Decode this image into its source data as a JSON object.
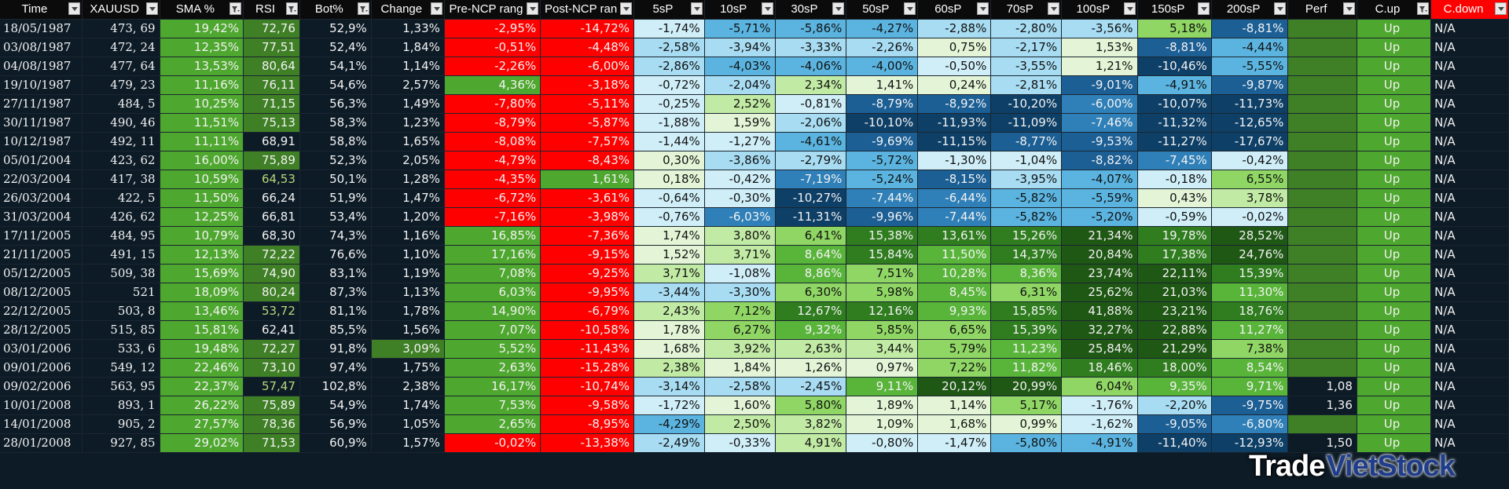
{
  "columns": [
    {
      "label": "Time",
      "filter": "arrow"
    },
    {
      "label": "XAUUSD",
      "filter": "arrow"
    },
    {
      "label": "SMA %",
      "filter": "funnel"
    },
    {
      "label": "RSI",
      "filter": "funnel"
    },
    {
      "label": "Bot%",
      "filter": "funnel"
    },
    {
      "label": "Change",
      "filter": "arrow"
    },
    {
      "label": "Pre-NCP rang",
      "filter": "arrow"
    },
    {
      "label": "Post-NCP ran",
      "filter": "arrow"
    },
    {
      "label": "5sP",
      "filter": "arrow"
    },
    {
      "label": "10sP",
      "filter": "arrow"
    },
    {
      "label": "30sP",
      "filter": "arrow"
    },
    {
      "label": "50sP",
      "filter": "arrow"
    },
    {
      "label": "60sP",
      "filter": "arrow"
    },
    {
      "label": "70sP",
      "filter": "arrow"
    },
    {
      "label": "100sP",
      "filter": "arrow"
    },
    {
      "label": "150sP",
      "filter": "arrow"
    },
    {
      "label": "200sP",
      "filter": "arrow"
    },
    {
      "label": "Perf",
      "filter": "arrow"
    },
    {
      "label": "C.up",
      "filter": "funnel"
    },
    {
      "label": "C.down",
      "filter": "arrow"
    }
  ],
  "header_colors": {
    "cdown_bg": "#ff0000"
  },
  "rows": [
    [
      "18/05/1987",
      "473, 69",
      "19,42%",
      "72,76",
      "52,9%",
      "1,33%",
      "-2,95%",
      "-14,72%",
      "-1,74%",
      "-5,71%",
      "-5,86%",
      "-4,27%",
      "-2,88%",
      "-2,80%",
      "-3,56%",
      "5,18%",
      "-8,81%",
      "",
      "Up",
      "N/A"
    ],
    [
      "03/08/1987",
      "472, 24",
      "12,35%",
      "77,51",
      "52,4%",
      "1,84%",
      "-0,51%",
      "-4,48%",
      "-2,58%",
      "-3,94%",
      "-3,33%",
      "-2,26%",
      "0,75%",
      "-2,17%",
      "1,53%",
      "-8,81%",
      "-4,44%",
      "",
      "Up",
      "N/A"
    ],
    [
      "04/08/1987",
      "477, 64",
      "13,53%",
      "80,64",
      "54,1%",
      "1,14%",
      "-2,26%",
      "-6,00%",
      "-2,86%",
      "-4,03%",
      "-4,06%",
      "-4,00%",
      "-0,50%",
      "-3,55%",
      "1,21%",
      "-10,46%",
      "-5,55%",
      "",
      "Up",
      "N/A"
    ],
    [
      "19/10/1987",
      "479, 23",
      "11,16%",
      "76,11",
      "54,6%",
      "2,57%",
      "4,36%",
      "-3,18%",
      "-0,72%",
      "-2,04%",
      "2,34%",
      "1,41%",
      "0,24%",
      "-2,81%",
      "-9,01%",
      "-4,91%",
      "-9,87%",
      "",
      "Up",
      "N/A"
    ],
    [
      "27/11/1987",
      "484, 5",
      "10,25%",
      "71,15",
      "56,3%",
      "1,49%",
      "-7,80%",
      "-5,11%",
      "-0,25%",
      "2,52%",
      "-0,81%",
      "-8,79%",
      "-8,92%",
      "-10,20%",
      "-6,00%",
      "-10,07%",
      "-11,73%",
      "",
      "Up",
      "N/A"
    ],
    [
      "30/11/1987",
      "490, 46",
      "11,51%",
      "75,13",
      "58,3%",
      "1,23%",
      "-8,79%",
      "-5,87%",
      "-1,88%",
      "1,59%",
      "-2,06%",
      "-10,10%",
      "-11,93%",
      "-11,09%",
      "-7,46%",
      "-11,32%",
      "-12,65%",
      "",
      "Up",
      "N/A"
    ],
    [
      "10/12/1987",
      "492, 11",
      "11,11%",
      "68,91",
      "58,8%",
      "1,65%",
      "-8,08%",
      "-7,57%",
      "-1,44%",
      "-1,27%",
      "-4,61%",
      "-9,69%",
      "-11,15%",
      "-8,77%",
      "-9,53%",
      "-11,27%",
      "-17,67%",
      "",
      "Up",
      "N/A"
    ],
    [
      "05/01/2004",
      "423, 62",
      "16,00%",
      "75,89",
      "52,3%",
      "2,05%",
      "-4,79%",
      "-8,43%",
      "0,30%",
      "-3,86%",
      "-2,79%",
      "-5,72%",
      "-1,30%",
      "-1,04%",
      "-8,82%",
      "-7,45%",
      "-0,42%",
      "",
      "Up",
      "N/A"
    ],
    [
      "22/03/2004",
      "417, 38",
      "10,59%",
      "64,53",
      "50,1%",
      "1,28%",
      "-4,35%",
      "1,61%",
      "0,18%",
      "-0,42%",
      "-7,19%",
      "-5,24%",
      "-8,15%",
      "-3,95%",
      "-4,07%",
      "-0,18%",
      "6,55%",
      "",
      "Up",
      "N/A"
    ],
    [
      "26/03/2004",
      "422, 5",
      "11,50%",
      "66,24",
      "51,9%",
      "1,47%",
      "-6,72%",
      "-3,61%",
      "-0,64%",
      "-0,30%",
      "-10,27%",
      "-7,44%",
      "-6,44%",
      "-5,82%",
      "-5,59%",
      "0,43%",
      "3,78%",
      "",
      "Up",
      "N/A"
    ],
    [
      "31/03/2004",
      "426, 62",
      "12,25%",
      "66,81",
      "53,4%",
      "1,20%",
      "-7,16%",
      "-3,98%",
      "-0,76%",
      "-6,03%",
      "-11,31%",
      "-9,96%",
      "-7,44%",
      "-5,82%",
      "-5,20%",
      "-0,59%",
      "-0,02%",
      "",
      "Up",
      "N/A"
    ],
    [
      "17/11/2005",
      "484, 95",
      "10,79%",
      "68,30",
      "74,3%",
      "1,16%",
      "16,85%",
      "-7,36%",
      "1,74%",
      "3,80%",
      "6,41%",
      "15,38%",
      "13,61%",
      "15,26%",
      "21,34%",
      "19,78%",
      "28,52%",
      "",
      "Up",
      "N/A"
    ],
    [
      "21/11/2005",
      "491, 15",
      "12,13%",
      "72,22",
      "76,6%",
      "1,10%",
      "17,16%",
      "-9,15%",
      "1,52%",
      "3,71%",
      "8,64%",
      "15,84%",
      "11,50%",
      "14,37%",
      "20,84%",
      "17,38%",
      "24,76%",
      "",
      "Up",
      "N/A"
    ],
    [
      "05/12/2005",
      "509, 38",
      "15,69%",
      "74,90",
      "83,1%",
      "1,19%",
      "7,08%",
      "-9,25%",
      "3,71%",
      "-1,08%",
      "8,86%",
      "7,51%",
      "10,28%",
      "8,36%",
      "23,74%",
      "22,11%",
      "15,39%",
      "",
      "Up",
      "N/A"
    ],
    [
      "08/12/2005",
      "521",
      "18,09%",
      "80,24",
      "87,3%",
      "1,13%",
      "6,03%",
      "-9,95%",
      "-3,44%",
      "-3,30%",
      "6,30%",
      "5,98%",
      "8,45%",
      "6,31%",
      "25,62%",
      "21,03%",
      "11,30%",
      "",
      "Up",
      "N/A"
    ],
    [
      "22/12/2005",
      "503, 8",
      "13,46%",
      "53,72",
      "81,1%",
      "1,78%",
      "14,90%",
      "-6,79%",
      "2,43%",
      "7,12%",
      "12,67%",
      "12,16%",
      "9,93%",
      "15,85%",
      "41,88%",
      "23,21%",
      "18,76%",
      "",
      "Up",
      "N/A"
    ],
    [
      "28/12/2005",
      "515, 85",
      "15,81%",
      "62,41",
      "85,5%",
      "1,56%",
      "7,07%",
      "-10,58%",
      "1,78%",
      "6,27%",
      "9,32%",
      "5,85%",
      "6,65%",
      "15,39%",
      "32,27%",
      "22,88%",
      "11,27%",
      "",
      "Up",
      "N/A"
    ],
    [
      "03/01/2006",
      "533, 6",
      "19,48%",
      "72,27",
      "91,8%",
      "3,09%",
      "5,52%",
      "-11,43%",
      "1,68%",
      "3,92%",
      "2,63%",
      "3,44%",
      "5,79%",
      "11,23%",
      "25,84%",
      "21,29%",
      "7,38%",
      "",
      "Up",
      "N/A"
    ],
    [
      "09/01/2006",
      "549, 12",
      "22,46%",
      "73,10",
      "97,4%",
      "1,75%",
      "2,63%",
      "-15,28%",
      "2,38%",
      "1,84%",
      "1,26%",
      "0,97%",
      "7,22%",
      "11,82%",
      "18,46%",
      "18,00%",
      "8,54%",
      "",
      "Up",
      "N/A"
    ],
    [
      "09/02/2006",
      "563, 95",
      "22,37%",
      "57,47",
      "102,8%",
      "2,38%",
      "16,17%",
      "-10,74%",
      "-3,14%",
      "-2,58%",
      "-2,45%",
      "9,11%",
      "20,12%",
      "20,99%",
      "6,04%",
      "9,35%",
      "9,71%",
      "1,08",
      "Up",
      "N/A"
    ],
    [
      "10/01/2008",
      "893, 1",
      "26,22%",
      "75,89",
      "54,9%",
      "1,74%",
      "7,53%",
      "-9,58%",
      "-1,72%",
      "1,60%",
      "5,80%",
      "1,89%",
      "1,14%",
      "5,17%",
      "-1,76%",
      "-2,20%",
      "-9,75%",
      "1,36",
      "Up",
      "N/A"
    ],
    [
      "14/01/2008",
      "905, 2",
      "27,57%",
      "78,36",
      "56,9%",
      "1,05%",
      "2,65%",
      "-8,95%",
      "-4,29%",
      "2,50%",
      "3,82%",
      "1,09%",
      "1,68%",
      "0,99%",
      "-1,62%",
      "-9,05%",
      "-6,80%",
      "",
      "Up",
      "N/A"
    ],
    [
      "28/01/2008",
      "927, 85",
      "29,02%",
      "71,53",
      "60,9%",
      "1,57%",
      "-0,02%",
      "-13,38%",
      "-2,49%",
      "-0,33%",
      "4,91%",
      "-0,80%",
      "-1,47%",
      "-5,80%",
      "-4,91%",
      "-11,40%",
      "-12,93%",
      "1,50",
      "Up",
      "N/A"
    ]
  ],
  "palette": {
    "sheet_bg": "#0d1b26",
    "green": "#4ea72e",
    "red": "#ff0000",
    "blue_scale": [
      "#0e3f66",
      "#1c5f95",
      "#2f80b8",
      "#5bb4e0",
      "#a7dcf2",
      "#cfeef8"
    ],
    "green_scale": [
      "#e3f5d6",
      "#c1eaa4",
      "#8fd664",
      "#59b43a",
      "#2f7d1f",
      "#1f5714"
    ]
  },
  "watermark": {
    "part1": "Trade",
    "part2": "VietStock"
  }
}
